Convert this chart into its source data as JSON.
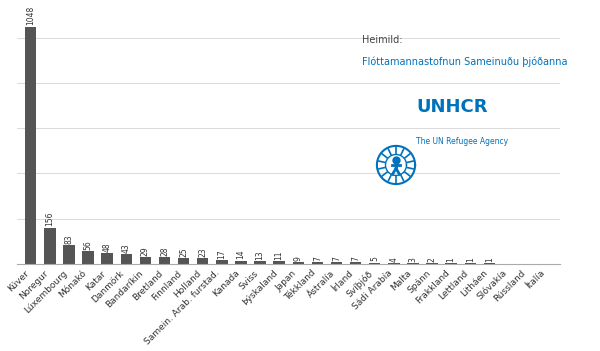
{
  "categories": [
    "Kúver",
    "Noregur",
    "Lúxembourg",
    "Mónakó",
    "Katar",
    "Danmörk",
    "Bandaríkin",
    "Bretland",
    "Finnland",
    "Holland",
    "Samein. Arab. furstad.",
    "Kanada",
    "Sviss",
    "Þýskaland",
    "Japan",
    "Tékkland",
    "Ástralía",
    "Írland",
    "Svíþjóð",
    "Sádi Arabía",
    "Malta",
    "Spánn",
    "Frakkland",
    "Lettland",
    "Litháen",
    "Slóvakía",
    "Rússland",
    "Ítalía"
  ],
  "values": [
    1048,
    156,
    83,
    56,
    48,
    43,
    29,
    28,
    25,
    23,
    17,
    14,
    13,
    11,
    9,
    7,
    7,
    7,
    5,
    4,
    3,
    2,
    1,
    1,
    1,
    0,
    0,
    0
  ],
  "bar_color": "#555555",
  "source_label": "Heimild:",
  "source_text": "Flóttamannastofnun Sameinuðu þjóðanna",
  "source_color": "#444444",
  "unhcr_text": "UNHCR",
  "unhcr_color": "#0072BC",
  "subtext": "The UN Refugee Agency",
  "background_color": "#ffffff",
  "value_label_fontsize": 5.5,
  "tick_fontsize": 6.5,
  "grid_color": "#cccccc",
  "ylim": [
    0,
    1150
  ]
}
